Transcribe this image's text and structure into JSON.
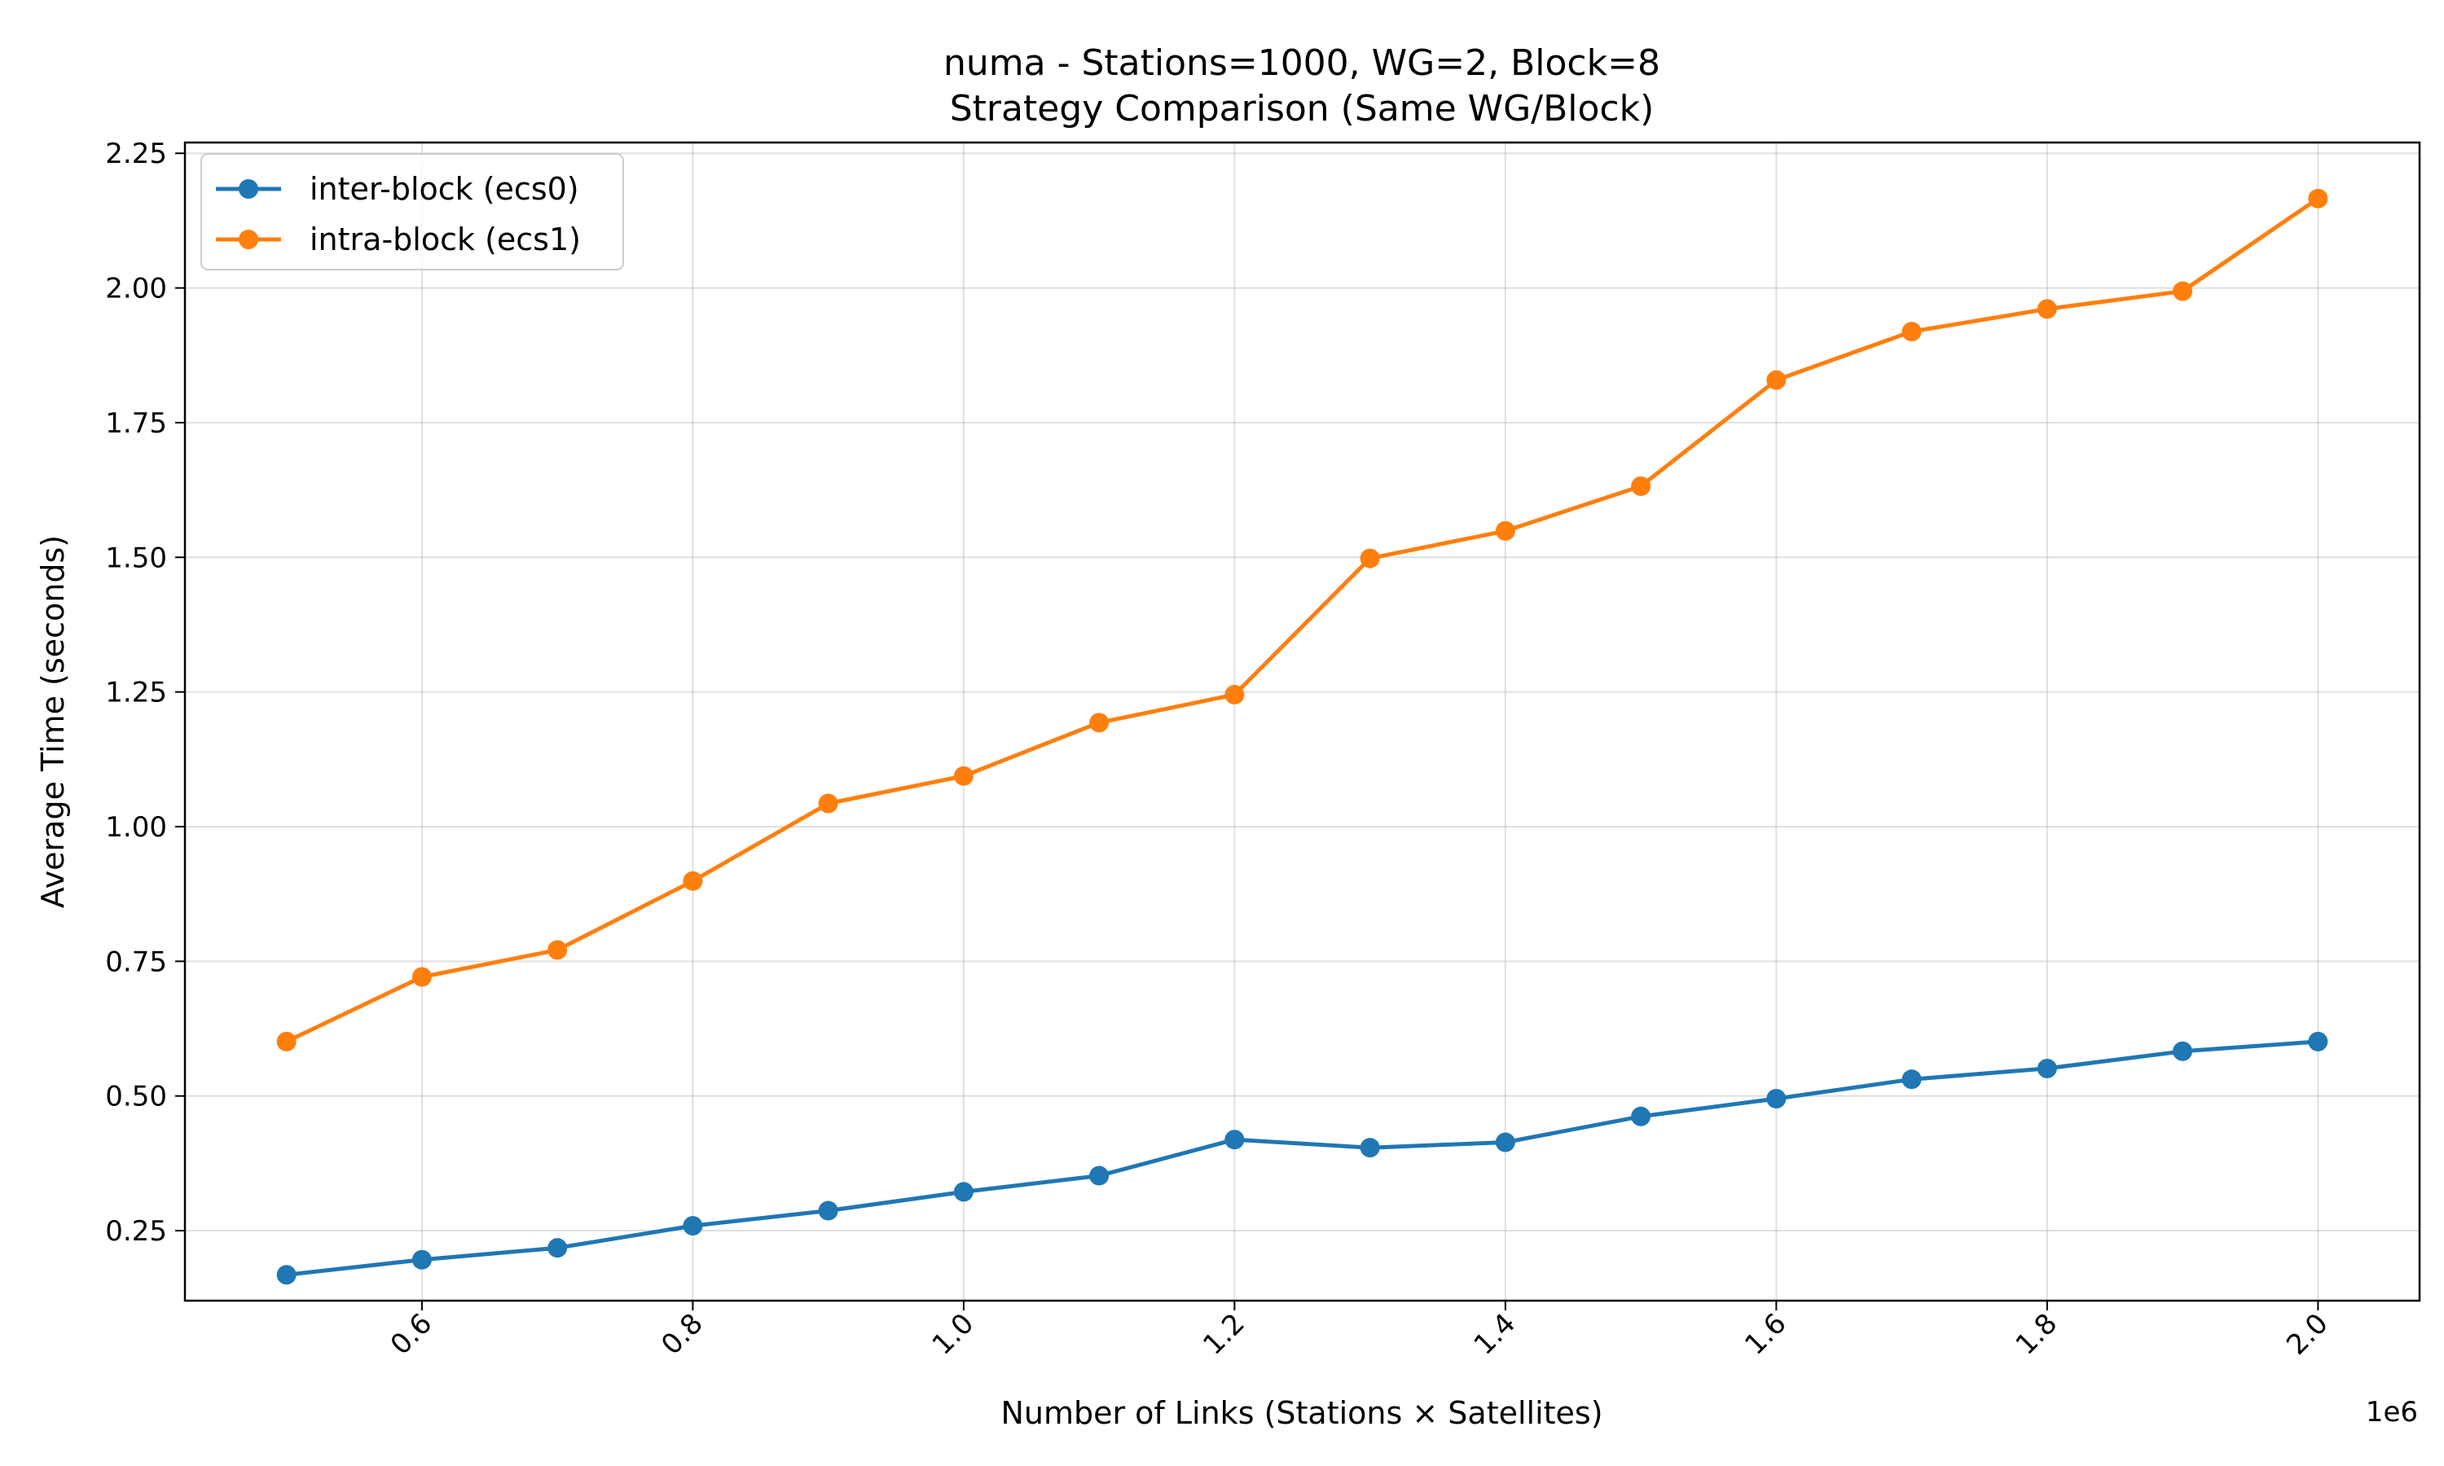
{
  "chart_data": {
    "type": "line",
    "title": "numa - Stations=1000, WG=2, Block=8",
    "subtitle": "Strategy Comparison (Same WG/Block)",
    "xlabel": "Number of Links (Stations × Satellites)",
    "ylabel": "Average Time (seconds)",
    "x_offset_label": "1e6",
    "x_multiplier": 1000000,
    "xlim": [
      0.425,
      2.075
    ],
    "ylim": [
      0.12,
      2.27
    ],
    "xticks": [
      0.6,
      0.8,
      1.0,
      1.2,
      1.4,
      1.6,
      1.8,
      2.0
    ],
    "xtick_labels": [
      "0.6",
      "0.8",
      "1.0",
      "1.2",
      "1.4",
      "1.6",
      "1.8",
      "2.0"
    ],
    "yticks": [
      0.25,
      0.5,
      0.75,
      1.0,
      1.25,
      1.5,
      1.75,
      2.0,
      2.25
    ],
    "ytick_labels": [
      "0.25",
      "0.50",
      "0.75",
      "1.00",
      "1.25",
      "1.50",
      "1.75",
      "2.00",
      "2.25"
    ],
    "grid": true,
    "legend_position": "top-left",
    "x": [
      0.5,
      0.6,
      0.7,
      0.8,
      0.9,
      1.0,
      1.1,
      1.2,
      1.3,
      1.4,
      1.5,
      1.6,
      1.7,
      1.8,
      1.9,
      2.0
    ],
    "series": [
      {
        "name": "inter-block (ecs0)",
        "color": "#1f77b4",
        "values": [
          0.168,
          0.196,
          0.218,
          0.259,
          0.287,
          0.322,
          0.352,
          0.419,
          0.404,
          0.414,
          0.462,
          0.495,
          0.531,
          0.551,
          0.583,
          0.601
        ]
      },
      {
        "name": "intra-block (ecs1)",
        "color": "#ff7f0e",
        "values": [
          0.601,
          0.721,
          0.771,
          0.899,
          1.043,
          1.094,
          1.193,
          1.245,
          1.498,
          1.549,
          1.632,
          1.829,
          1.919,
          1.961,
          1.994,
          2.166
        ]
      }
    ]
  }
}
